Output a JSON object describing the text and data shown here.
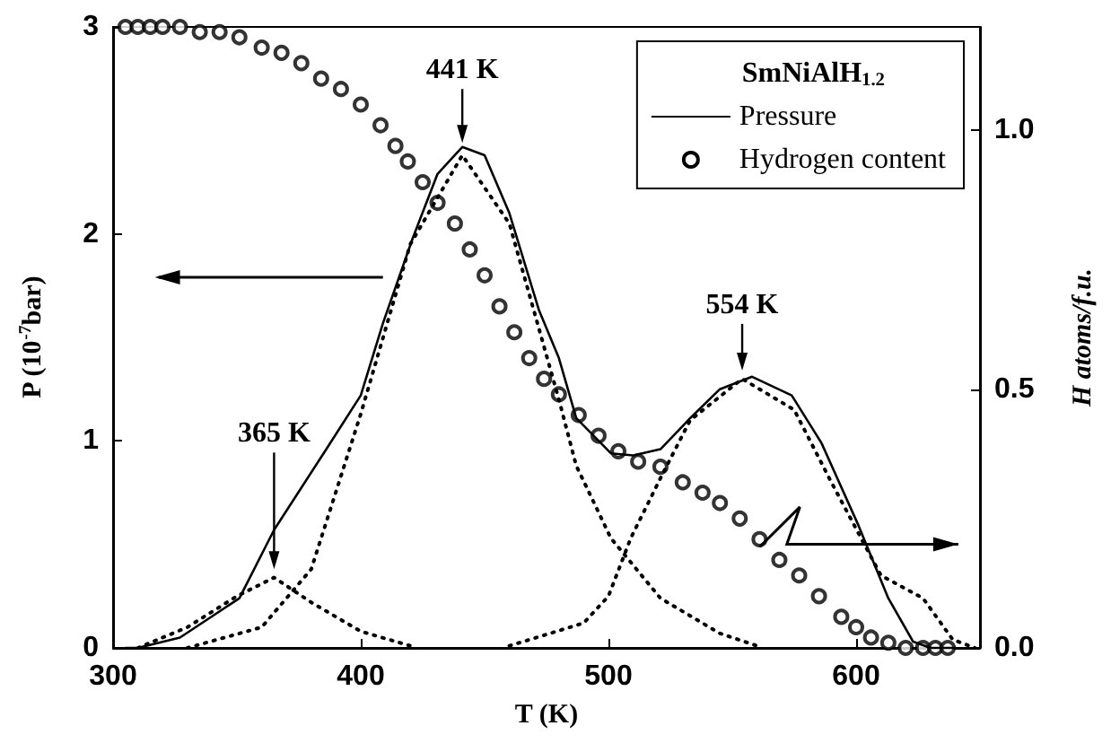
{
  "chart_data": {
    "type": "line",
    "legend_title": "SmNiAlH$_{1.2}$",
    "xlabel": "T (K)",
    "ylabel": "P (10$^{-7}$bar)",
    "y2label": "H atoms/f.u.",
    "xlim": [
      300,
      650
    ],
    "xticks": [
      300,
      400,
      500,
      600
    ],
    "ylim": [
      0,
      3
    ],
    "yticks": [
      0,
      1,
      2,
      3
    ],
    "y2lim": [
      0,
      1.2
    ],
    "y2ticks": [
      {
        "value": 0,
        "label": "0.0"
      },
      {
        "value": 0.5,
        "label": "0.5"
      },
      {
        "value": 1,
        "label": "1.0"
      }
    ],
    "grid": false,
    "legend": "top right",
    "annotations": [
      {
        "text": "441 K",
        "x": 441,
        "y": 2.44
      },
      {
        "text": "365 K",
        "x": 365,
        "y": 0.38
      },
      {
        "text": "554 K",
        "x": 554,
        "y": 1.34
      }
    ],
    "series": [
      {
        "name": "Pressure",
        "color": "#000000",
        "marker": "none",
        "line_style": "solid",
        "x": [
          305,
          310,
          327,
          351,
          365,
          385,
          400,
          409,
          421,
          431,
          441,
          450,
          460,
          472,
          480,
          487,
          501,
          510,
          521,
          533,
          545,
          558,
          574,
          586,
          601,
          613,
          623,
          630,
          640
        ],
        "values": [
          0,
          0,
          0.05,
          0.24,
          0.57,
          0.94,
          1.22,
          1.57,
          1.98,
          2.29,
          2.42,
          2.38,
          2.1,
          1.63,
          1.4,
          1.11,
          0.94,
          0.93,
          0.96,
          1.11,
          1.25,
          1.31,
          1.22,
          0.99,
          0.59,
          0.24,
          0.03,
          0,
          0
        ]
      },
      {
        "name": "Hydrogen content",
        "type": "scatter",
        "axis": "y2",
        "color": "#000000",
        "marker": "circle",
        "x": [
          305,
          310,
          315,
          320,
          327,
          335,
          343,
          351,
          360,
          368,
          376,
          384,
          392,
          400,
          408,
          414,
          419,
          425,
          431,
          438,
          444,
          450,
          456,
          462,
          468,
          474,
          480,
          488,
          496,
          504,
          512,
          521,
          530,
          538,
          545,
          553,
          561,
          569,
          577,
          585,
          594,
          600,
          606,
          613,
          620,
          627,
          632,
          637
        ],
        "values": [
          1.2,
          1.2,
          1.2,
          1.2,
          1.2,
          1.19,
          1.19,
          1.18,
          1.16,
          1.15,
          1.13,
          1.1,
          1.08,
          1.05,
          1.01,
          0.97,
          0.94,
          0.9,
          0.86,
          0.82,
          0.77,
          0.72,
          0.66,
          0.61,
          0.56,
          0.52,
          0.49,
          0.45,
          0.41,
          0.38,
          0.36,
          0.35,
          0.32,
          0.3,
          0.28,
          0.25,
          0.21,
          0.17,
          0.14,
          0.1,
          0.06,
          0.04,
          0.02,
          0.01,
          0,
          0,
          0,
          0
        ]
      },
      {
        "color": "#000000",
        "marker": "none",
        "line_style": "dotted",
        "x": [
          310,
          330,
          350,
          365,
          380,
          400,
          420
        ],
        "values": [
          0,
          0.1,
          0.25,
          0.34,
          0.22,
          0.08,
          0.01
        ]
      },
      {
        "color": "#000000",
        "marker": "none",
        "line_style": "dotted",
        "x": [
          330,
          360,
          380,
          400,
          420,
          441,
          460,
          480,
          487,
          501,
          521,
          545,
          560
        ],
        "values": [
          0,
          0.1,
          0.38,
          1.13,
          1.95,
          2.38,
          2.05,
          1.2,
          0.88,
          0.53,
          0.24,
          0.07,
          0.01
        ]
      },
      {
        "color": "#000000",
        "marker": "none",
        "line_style": "dotted",
        "x": [
          460,
          490,
          500,
          509,
          521,
          533,
          554,
          575,
          590,
          610,
          627,
          639,
          648
        ],
        "values": [
          0.01,
          0.12,
          0.25,
          0.53,
          0.82,
          1.1,
          1.3,
          1.15,
          0.8,
          0.35,
          0.24,
          0.04,
          0
        ]
      }
    ]
  }
}
